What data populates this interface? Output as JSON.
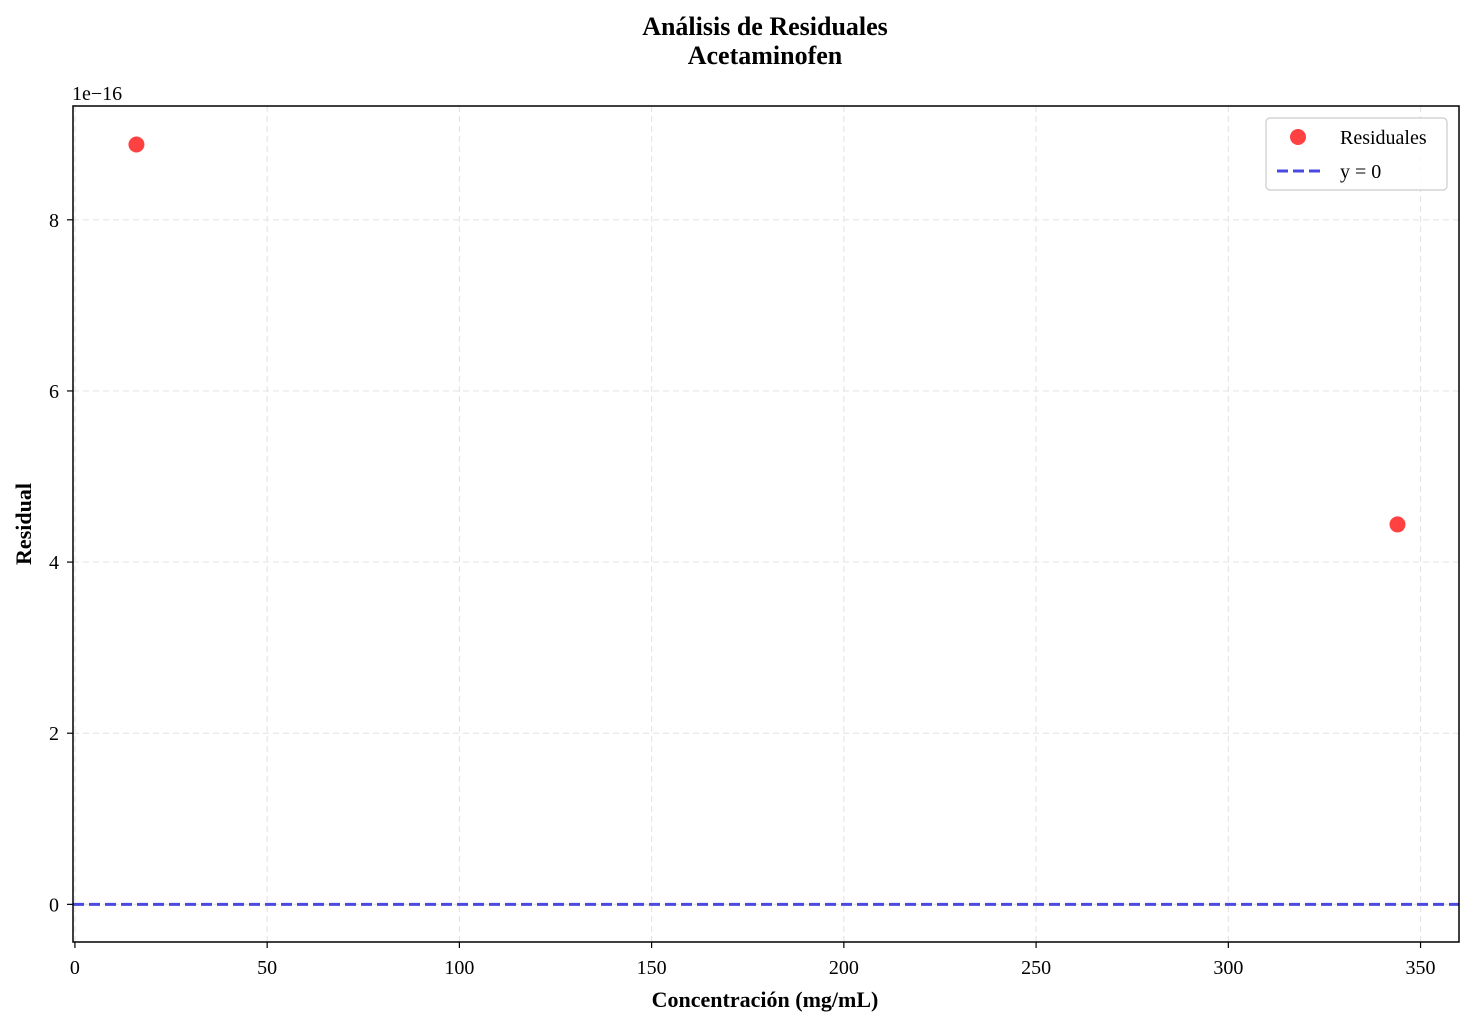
{
  "chart_data": {
    "type": "scatter",
    "title": "Análisis de Residuales",
    "subtitle": "Acetaminofen",
    "xlabel": "Concentración (mg/mL)",
    "ylabel": "Residual",
    "y_offset_label": "1e−16",
    "xlim": [
      -0.5,
      360
    ],
    "ylim": [
      -0.44,
      9.33
    ],
    "x_ticks": [
      0,
      50,
      100,
      150,
      200,
      250,
      300,
      350
    ],
    "y_ticks": [
      0,
      2,
      4,
      6,
      8
    ],
    "grid": true,
    "legend_position": "top-right",
    "series": [
      {
        "name": "Residuales",
        "kind": "scatter",
        "color": "#ff2020",
        "points": [
          {
            "x": 16,
            "y": 8.88
          },
          {
            "x": 344,
            "y": 4.44
          }
        ]
      },
      {
        "name": "y = 0",
        "kind": "hline",
        "color": "#4a4ae0",
        "y": 0
      }
    ]
  }
}
